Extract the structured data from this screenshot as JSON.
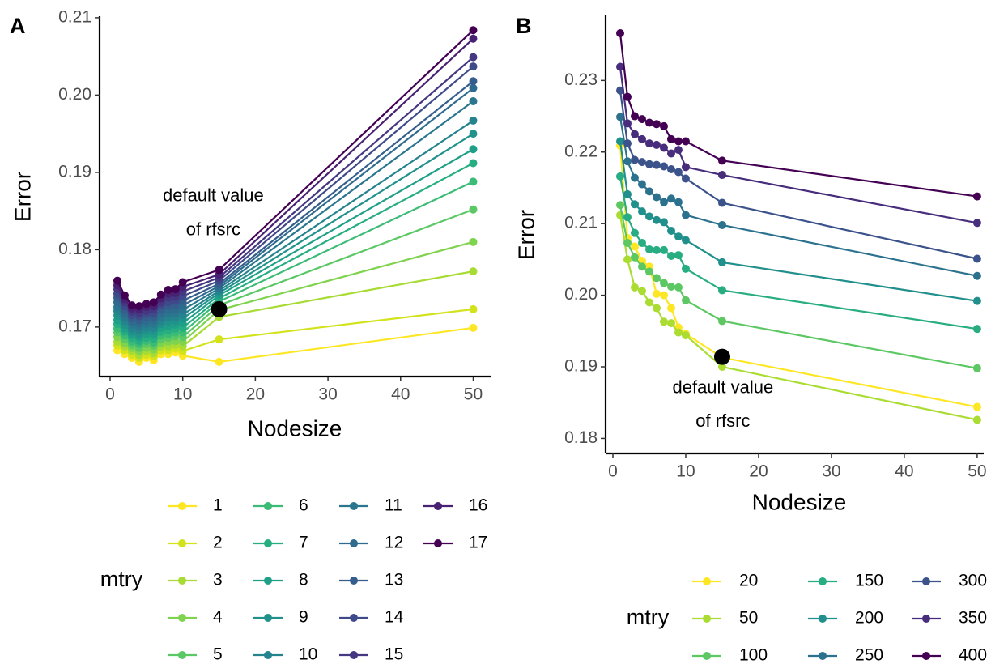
{
  "chart_data": [
    {
      "type": "line",
      "panel_label": "A",
      "x_label": "Nodesize",
      "y_label": "Error",
      "legend_title": "mtry",
      "x": [
        1,
        2,
        3,
        4,
        5,
        6,
        7,
        8,
        9,
        10,
        15,
        50
      ],
      "xlim": [
        -1.45,
        52.4
      ],
      "xticks": [
        0,
        10,
        20,
        30,
        40,
        50
      ],
      "ylim": [
        0.1636,
        0.2102
      ],
      "yticks": [
        0.17,
        0.18,
        0.19,
        {
          "value": 0.2,
          "label": "0.20"
        },
        0.21
      ],
      "series": [
        {
          "name": "1",
          "color": "#FDE725",
          "values": [
            0.167,
            0.1665,
            0.166,
            0.1655,
            0.166,
            0.1657,
            0.1665,
            0.1665,
            0.1667,
            0.1663,
            0.1655,
            0.1699
          ]
        },
        {
          "name": "2",
          "color": "#D2E21B",
          "values": [
            0.1676,
            0.167,
            0.1664,
            0.166,
            0.1664,
            0.1662,
            0.167,
            0.167,
            0.1672,
            0.1669,
            0.1684,
            0.1723
          ]
        },
        {
          "name": "3",
          "color": "#A8DB34",
          "values": [
            0.1681,
            0.1675,
            0.1669,
            0.1664,
            0.1669,
            0.1666,
            0.1675,
            0.1675,
            0.1677,
            0.1675,
            0.1713,
            0.1772
          ]
        },
        {
          "name": "4",
          "color": "#7FD34E",
          "values": [
            0.1687,
            0.1679,
            0.1673,
            0.1669,
            0.1673,
            0.1671,
            0.1679,
            0.1681,
            0.1682,
            0.1681,
            0.1722,
            0.181
          ]
        },
        {
          "name": "5",
          "color": "#5AC864",
          "values": [
            0.1693,
            0.1684,
            0.1677,
            0.1673,
            0.1678,
            0.1676,
            0.1684,
            0.1686,
            0.1688,
            0.1687,
            0.1728,
            0.1852
          ]
        },
        {
          "name": "6",
          "color": "#3BBB75",
          "values": [
            0.1698,
            0.1689,
            0.1681,
            0.1678,
            0.1682,
            0.168,
            0.1689,
            0.1691,
            0.1693,
            0.1693,
            0.1733,
            0.1888
          ]
        },
        {
          "name": "7",
          "color": "#26AD81",
          "values": [
            0.1704,
            0.1694,
            0.1686,
            0.1682,
            0.1686,
            0.1685,
            0.1694,
            0.1696,
            0.1698,
            0.1699,
            0.1737,
            0.1912
          ]
        },
        {
          "name": "8",
          "color": "#1F9F88",
          "values": [
            0.1709,
            0.1698,
            0.169,
            0.1687,
            0.1691,
            0.169,
            0.1699,
            0.1701,
            0.1703,
            0.1705,
            0.1741,
            0.193
          ]
        },
        {
          "name": "9",
          "color": "#21918C",
          "values": [
            0.1715,
            0.1703,
            0.1694,
            0.1691,
            0.1695,
            0.1695,
            0.1704,
            0.1707,
            0.1708,
            0.1711,
            0.1744,
            0.195
          ]
        },
        {
          "name": "10",
          "color": "#25838E",
          "values": [
            0.1721,
            0.1708,
            0.1698,
            0.1696,
            0.1699,
            0.1699,
            0.1708,
            0.1712,
            0.1713,
            0.1716,
            0.1747,
            0.1967
          ]
        },
        {
          "name": "11",
          "color": "#2A768E",
          "values": [
            0.1726,
            0.1713,
            0.1703,
            0.17,
            0.1704,
            0.1704,
            0.1713,
            0.1717,
            0.1718,
            0.1722,
            0.175,
            0.1992
          ]
        },
        {
          "name": "12",
          "color": "#2F6B8E",
          "values": [
            0.1732,
            0.1717,
            0.1707,
            0.1705,
            0.1708,
            0.1709,
            0.1718,
            0.1722,
            0.1723,
            0.1728,
            0.1753,
            0.2009
          ]
        },
        {
          "name": "13",
          "color": "#355E8D",
          "values": [
            0.1738,
            0.1722,
            0.1711,
            0.1709,
            0.1713,
            0.1713,
            0.1723,
            0.1727,
            0.1729,
            0.1734,
            0.1756,
            0.2018
          ]
        },
        {
          "name": "14",
          "color": "#3E4A89",
          "values": [
            0.1743,
            0.1727,
            0.1715,
            0.1714,
            0.1717,
            0.1718,
            0.1728,
            0.1732,
            0.1734,
            0.174,
            0.176,
            0.2037
          ]
        },
        {
          "name": "15",
          "color": "#453781",
          "values": [
            0.1749,
            0.1732,
            0.172,
            0.1718,
            0.1721,
            0.1723,
            0.1732,
            0.1738,
            0.1739,
            0.1746,
            0.1764,
            0.2049
          ]
        },
        {
          "name": "16",
          "color": "#482173",
          "values": [
            0.1754,
            0.1736,
            0.1724,
            0.1723,
            0.1726,
            0.1727,
            0.1737,
            0.1743,
            0.1744,
            0.1752,
            0.1768,
            0.2073
          ]
        },
        {
          "name": "17",
          "color": "#440154",
          "values": [
            0.176,
            0.1741,
            0.1728,
            0.1727,
            0.173,
            0.1732,
            0.1742,
            0.1748,
            0.1749,
            0.1758,
            0.1774,
            0.2084
          ]
        }
      ],
      "highlight_point": {
        "x": 15,
        "y": 0.1723
      },
      "annotations": [
        {
          "x": 14.2,
          "y": 0.1869,
          "text": "default value"
        },
        {
          "x": 14.2,
          "y": 0.1825,
          "text": "of rfsrc"
        }
      ]
    },
    {
      "type": "line",
      "panel_label": "B",
      "x_label": "Nodesize",
      "y_label": "Error",
      "legend_title": "mtry",
      "x": [
        1,
        2,
        3,
        4,
        5,
        6,
        7,
        8,
        9,
        10,
        15,
        50
      ],
      "xlim": [
        -1,
        50.9
      ],
      "xticks": [
        0,
        10,
        20,
        30,
        40,
        50
      ],
      "ylim": [
        0.1779,
        0.2392
      ],
      "yticks": [
        0.18,
        0.19,
        {
          "value": 0.2,
          "label": "0.20"
        },
        0.21,
        0.22,
        0.23
      ],
      "series": [
        {
          "name": "20",
          "color": "#FDE725",
          "values": [
            0.2209,
            0.208,
            0.2068,
            0.2048,
            0.204,
            0.2002,
            0.2,
            0.1982,
            0.1955,
            0.1946,
            0.1913,
            0.1844
          ]
        },
        {
          "name": "50",
          "color": "#AADC32",
          "values": [
            0.2112,
            0.205,
            0.2011,
            0.2006,
            0.199,
            0.1982,
            0.1963,
            0.1961,
            0.1948,
            0.1944,
            0.19,
            0.1826
          ]
        },
        {
          "name": "100",
          "color": "#5DC863",
          "values": [
            0.2126,
            0.2073,
            0.2053,
            0.204,
            0.2033,
            0.2024,
            0.2017,
            0.2012,
            0.2011,
            0.1993,
            0.1964,
            0.1898
          ]
        },
        {
          "name": "150",
          "color": "#27AD81",
          "values": [
            0.2166,
            0.2109,
            0.2087,
            0.2073,
            0.2064,
            0.2063,
            0.2063,
            0.2055,
            0.2056,
            0.2037,
            0.2007,
            0.1953
          ]
        },
        {
          "name": "200",
          "color": "#21908C",
          "values": [
            0.2215,
            0.2141,
            0.2127,
            0.2117,
            0.211,
            0.2105,
            0.2102,
            0.209,
            0.2082,
            0.2077,
            0.2046,
            0.1992
          ]
        },
        {
          "name": "250",
          "color": "#2C728E",
          "values": [
            0.2249,
            0.2187,
            0.2164,
            0.2155,
            0.2145,
            0.2137,
            0.213,
            0.2135,
            0.213,
            0.2112,
            0.2098,
            0.2027
          ]
        },
        {
          "name": "300",
          "color": "#3B528B",
          "values": [
            0.2286,
            0.2212,
            0.2189,
            0.2186,
            0.2183,
            0.2182,
            0.218,
            0.2176,
            0.2172,
            0.2163,
            0.2129,
            0.2051
          ]
        },
        {
          "name": "350",
          "color": "#472D7B",
          "values": [
            0.2319,
            0.224,
            0.2225,
            0.2218,
            0.2212,
            0.221,
            0.2206,
            0.2198,
            0.2203,
            0.2179,
            0.2168,
            0.2101
          ]
        },
        {
          "name": "400",
          "color": "#440154",
          "values": [
            0.2366,
            0.2277,
            0.225,
            0.2246,
            0.2241,
            0.2239,
            0.2236,
            0.2218,
            0.2215,
            0.2215,
            0.2188,
            0.2138
          ]
        }
      ],
      "highlight_point": {
        "x": 15,
        "y": 0.1914
      },
      "annotations": [
        {
          "x": 15.1,
          "y": 0.187,
          "text": "default value"
        },
        {
          "x": 15.1,
          "y": 0.1823,
          "text": "of rfsrc"
        }
      ]
    }
  ]
}
